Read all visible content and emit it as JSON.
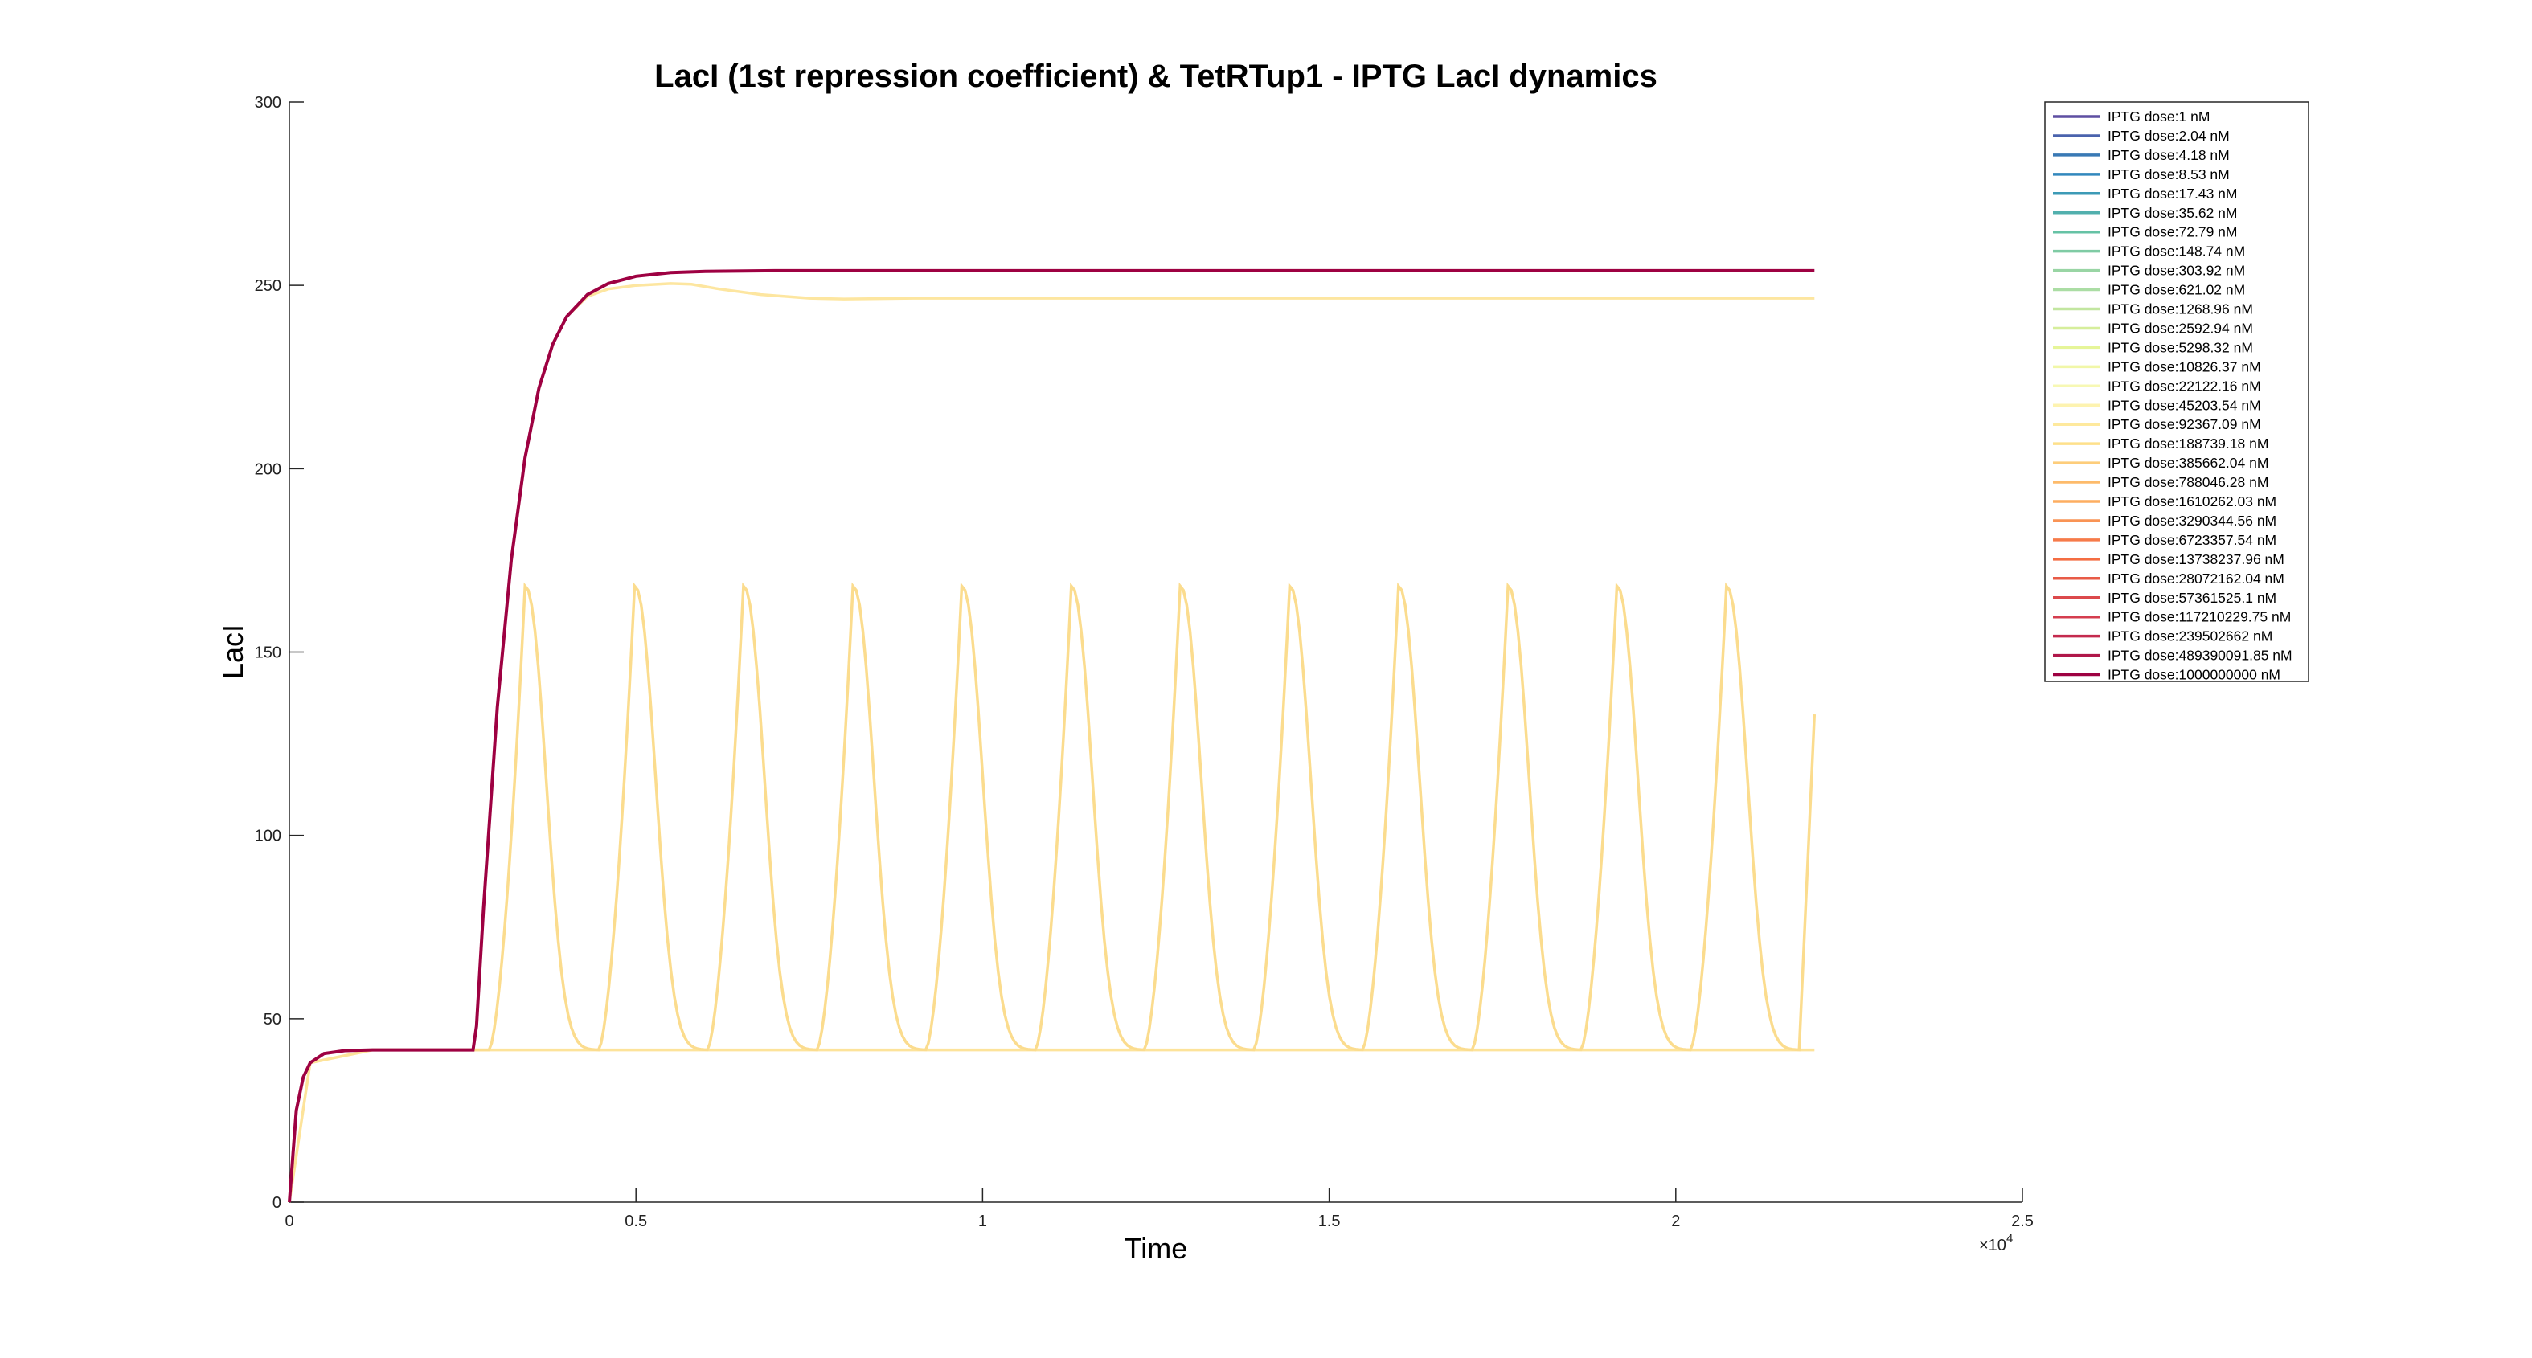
{
  "chart_data": {
    "type": "line",
    "title": "LacI (1st repression coefficient) & TetRTup1 - IPTG LacI dynamics",
    "xlabel": "Time",
    "ylabel": "LacI",
    "xlim": [
      0,
      25000
    ],
    "ylim": [
      0,
      300
    ],
    "x_ticks": [
      0,
      5000,
      10000,
      15000,
      20000,
      25000
    ],
    "x_tick_labels": [
      "0",
      "0.5",
      "1",
      "1.5",
      "2",
      "2.5"
    ],
    "x_exponent_label": "×10",
    "x_exponent_power": "4",
    "y_ticks": [
      0,
      50,
      100,
      150,
      200,
      250,
      300
    ],
    "y_tick_labels": [
      "0",
      "50",
      "100",
      "150",
      "200",
      "250",
      "300"
    ],
    "grid": false,
    "legend_position": "top-right",
    "series": [
      {
        "name": "IPTG dose:1 nM",
        "color": "#5e4fa2"
      },
      {
        "name": "IPTG dose:2.04 nM",
        "color": "#4a63ad"
      },
      {
        "name": "IPTG dose:4.18 nM",
        "color": "#3979b5"
      },
      {
        "name": "IPTG dose:8.53 nM",
        "color": "#3288bd"
      },
      {
        "name": "IPTG dose:17.43 nM",
        "color": "#3c9ab6"
      },
      {
        "name": "IPTG dose:35.62 nM",
        "color": "#52b0ae"
      },
      {
        "name": "IPTG dose:72.79 nM",
        "color": "#66c2a5"
      },
      {
        "name": "IPTG dose:148.74 nM",
        "color": "#7fcba4"
      },
      {
        "name": "IPTG dose:303.92 nM",
        "color": "#99d5a4"
      },
      {
        "name": "IPTG dose:621.02 nM",
        "color": "#abdda4"
      },
      {
        "name": "IPTG dose:1268.96 nM",
        "color": "#c2e6a0"
      },
      {
        "name": "IPTG dose:2592.94 nM",
        "color": "#d6ee9b"
      },
      {
        "name": "IPTG dose:5298.32 nM",
        "color": "#e6f598"
      },
      {
        "name": "IPTG dose:10826.37 nM",
        "color": "#f1f7a8"
      },
      {
        "name": "IPTG dose:22122.16 nM",
        "color": "#f7f8b4"
      },
      {
        "name": "IPTG dose:45203.54 nM",
        "color": "#fdf3b0"
      },
      {
        "name": "IPTG dose:92367.09 nM",
        "color": "#fee99d"
      },
      {
        "name": "IPTG dose:188739.18 nM",
        "color": "#fee08b"
      },
      {
        "name": "IPTG dose:385662.04 nM",
        "color": "#fdcd7b"
      },
      {
        "name": "IPTG dose:788046.28 nM",
        "color": "#fdbb6b"
      },
      {
        "name": "IPTG dose:1610262.03 nM",
        "color": "#fdae61"
      },
      {
        "name": "IPTG dose:3290344.56 nM",
        "color": "#f99455"
      },
      {
        "name": "IPTG dose:6723357.54 nM",
        "color": "#f67b4a"
      },
      {
        "name": "IPTG dose:13738237.96 nM",
        "color": "#f46d43"
      },
      {
        "name": "IPTG dose:28072162.04 nM",
        "color": "#e85b47"
      },
      {
        "name": "IPTG dose:57361525.1 nM",
        "color": "#dc494c"
      },
      {
        "name": "IPTG dose:117210229.75 nM",
        "color": "#d53e4f"
      },
      {
        "name": "IPTG dose:239502662 nM",
        "color": "#c42a4e"
      },
      {
        "name": "IPTG dose:489390091.85 nM",
        "color": "#b0174a"
      },
      {
        "name": "IPTG dose:1000000000 nM",
        "color": "#9e0142"
      }
    ],
    "plotted_series": [
      {
        "label": "IPTG dose:1000000000 nM",
        "color": "#9e0142",
        "x": [
          0,
          100,
          200,
          300,
          500,
          800,
          1200,
          2000,
          2650,
          2700,
          2800,
          3000,
          3200,
          3400,
          3600,
          3800,
          4000,
          4300,
          4600,
          5000,
          5500,
          6000,
          7000,
          8000,
          10000,
          15000,
          22000
        ],
        "y": [
          0,
          25,
          34,
          38,
          40.5,
          41.3,
          41.5,
          41.5,
          41.5,
          48,
          80,
          135,
          175,
          203,
          222,
          234,
          241.5,
          247.5,
          250.5,
          252.5,
          253.5,
          253.8,
          254,
          254,
          254,
          254,
          254
        ]
      },
      {
        "label": "IPTG dose:788046.28 nM",
        "color": "#fde6a0",
        "x": [
          0,
          100,
          200,
          300,
          500,
          800,
          1200,
          2000,
          2650,
          2700,
          2800,
          3000,
          3200,
          3400,
          3600,
          3800,
          4000,
          4300,
          4600,
          5000,
          5500,
          5800,
          6200,
          6800,
          7500,
          8000,
          9000,
          10000,
          15000,
          22000
        ],
        "y": [
          0,
          25,
          34,
          38,
          40.5,
          41.3,
          41.5,
          41.5,
          41.5,
          48,
          80,
          135,
          175,
          203,
          222,
          234,
          241.5,
          247,
          249,
          250,
          250.5,
          250.3,
          249,
          247.5,
          246.5,
          246.3,
          246.5,
          246.5,
          246.5,
          246.5
        ]
      },
      {
        "label": "IPTG dose:385662.04 nM",
        "color": "#fde39a",
        "x": [
          0,
          300,
          1200,
          22000
        ],
        "y": [
          0,
          38,
          41.5,
          41.5
        ]
      }
    ],
    "oscillating_series": {
      "label": "IPTG dose:188739.18 nM",
      "color": "#fbdc8e",
      "baseline": 41.5,
      "peak": 168,
      "peak_times": [
        3400,
        4980,
        6550,
        8130,
        9700,
        11280,
        12850,
        14430,
        16000,
        17580,
        19150,
        20730
      ],
      "end_time": 22000,
      "end_value": 133
    }
  }
}
